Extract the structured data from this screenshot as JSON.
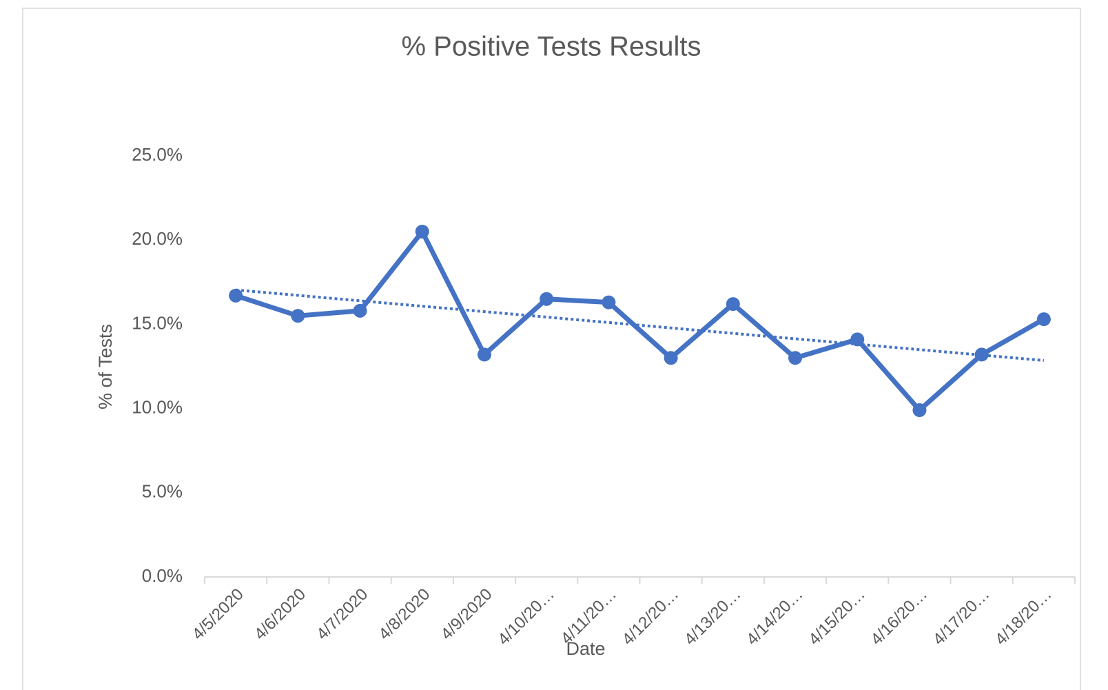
{
  "chart_data": {
    "type": "line",
    "title": "% Positive Tests Results",
    "xlabel": "Date",
    "ylabel": "% of Tests",
    "categories": [
      "4/5/2020",
      "4/6/2020",
      "4/7/2020",
      "4/8/2020",
      "4/9/2020",
      "4/10/20…",
      "4/11/20…",
      "4/12/20…",
      "4/13/20…",
      "4/14/20…",
      "4/15/20…",
      "4/16/20…",
      "4/17/20…",
      "4/18/20…"
    ],
    "values": [
      16.7,
      15.5,
      15.8,
      20.5,
      13.2,
      16.5,
      16.3,
      13.0,
      16.2,
      13.0,
      14.1,
      9.9,
      13.2,
      15.3
    ],
    "color": "#4472c4",
    "trendline": "linear",
    "ylim": [
      0,
      25
    ],
    "yticks": [
      {
        "value": 0,
        "label": "0.0%"
      },
      {
        "value": 5,
        "label": "5.0%"
      },
      {
        "value": 10,
        "label": "10.0%"
      },
      {
        "value": 15,
        "label": "15.0%"
      },
      {
        "value": 20,
        "label": "20.0%"
      },
      {
        "value": 25,
        "label": "25.0%"
      }
    ],
    "grid": false
  }
}
